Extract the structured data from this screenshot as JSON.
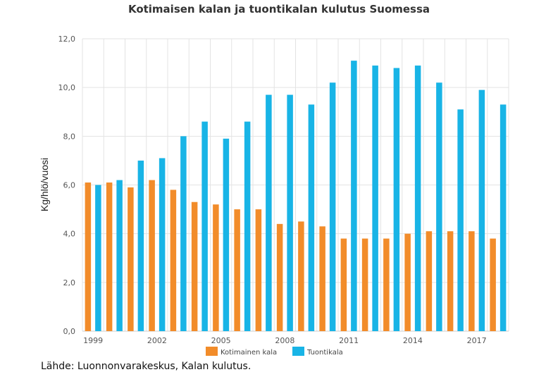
{
  "chart_data": {
    "type": "bar",
    "title": "Kotimaisen kalan ja tuontikalan kulutus Suomessa",
    "xlabel": "",
    "ylabel": "Kg/hlö/vuosi",
    "ylim": [
      0,
      12
    ],
    "yticks": [
      "0,0",
      "2,0",
      "4,0",
      "6,0",
      "8,0",
      "10,0",
      "12,0"
    ],
    "ytick_values": [
      0,
      2,
      4,
      6,
      8,
      10,
      12
    ],
    "categories": [
      "1999",
      "2000",
      "2001",
      "2002",
      "2003",
      "2004",
      "2005",
      "2006",
      "2007",
      "2008",
      "2009",
      "2010",
      "2011",
      "2012",
      "2013",
      "2014",
      "2015",
      "2016",
      "2017",
      "2018"
    ],
    "xtick_labels": [
      "1999",
      "2002",
      "2005",
      "2008",
      "2011",
      "2014",
      "2017"
    ],
    "grid": true,
    "legend_position": "bottom-center",
    "series": [
      {
        "name": "Kotimainen kala",
        "color": "#f28c2a",
        "values": [
          6.1,
          6.1,
          5.9,
          6.2,
          5.8,
          5.3,
          5.2,
          5.0,
          5.0,
          4.4,
          4.5,
          4.3,
          3.8,
          3.8,
          3.8,
          4.0,
          4.1,
          4.1,
          4.1,
          3.8
        ]
      },
      {
        "name": "Tuontikala",
        "color": "#18b4e6",
        "values": [
          6.0,
          6.2,
          7.0,
          7.1,
          8.0,
          8.6,
          7.9,
          8.6,
          9.7,
          9.7,
          9.3,
          10.2,
          11.1,
          10.9,
          10.8,
          10.9,
          10.2,
          9.1,
          9.9,
          9.3
        ]
      }
    ]
  },
  "source": "Lähde: Luonnonvarakeskus, Kalan kulutus."
}
